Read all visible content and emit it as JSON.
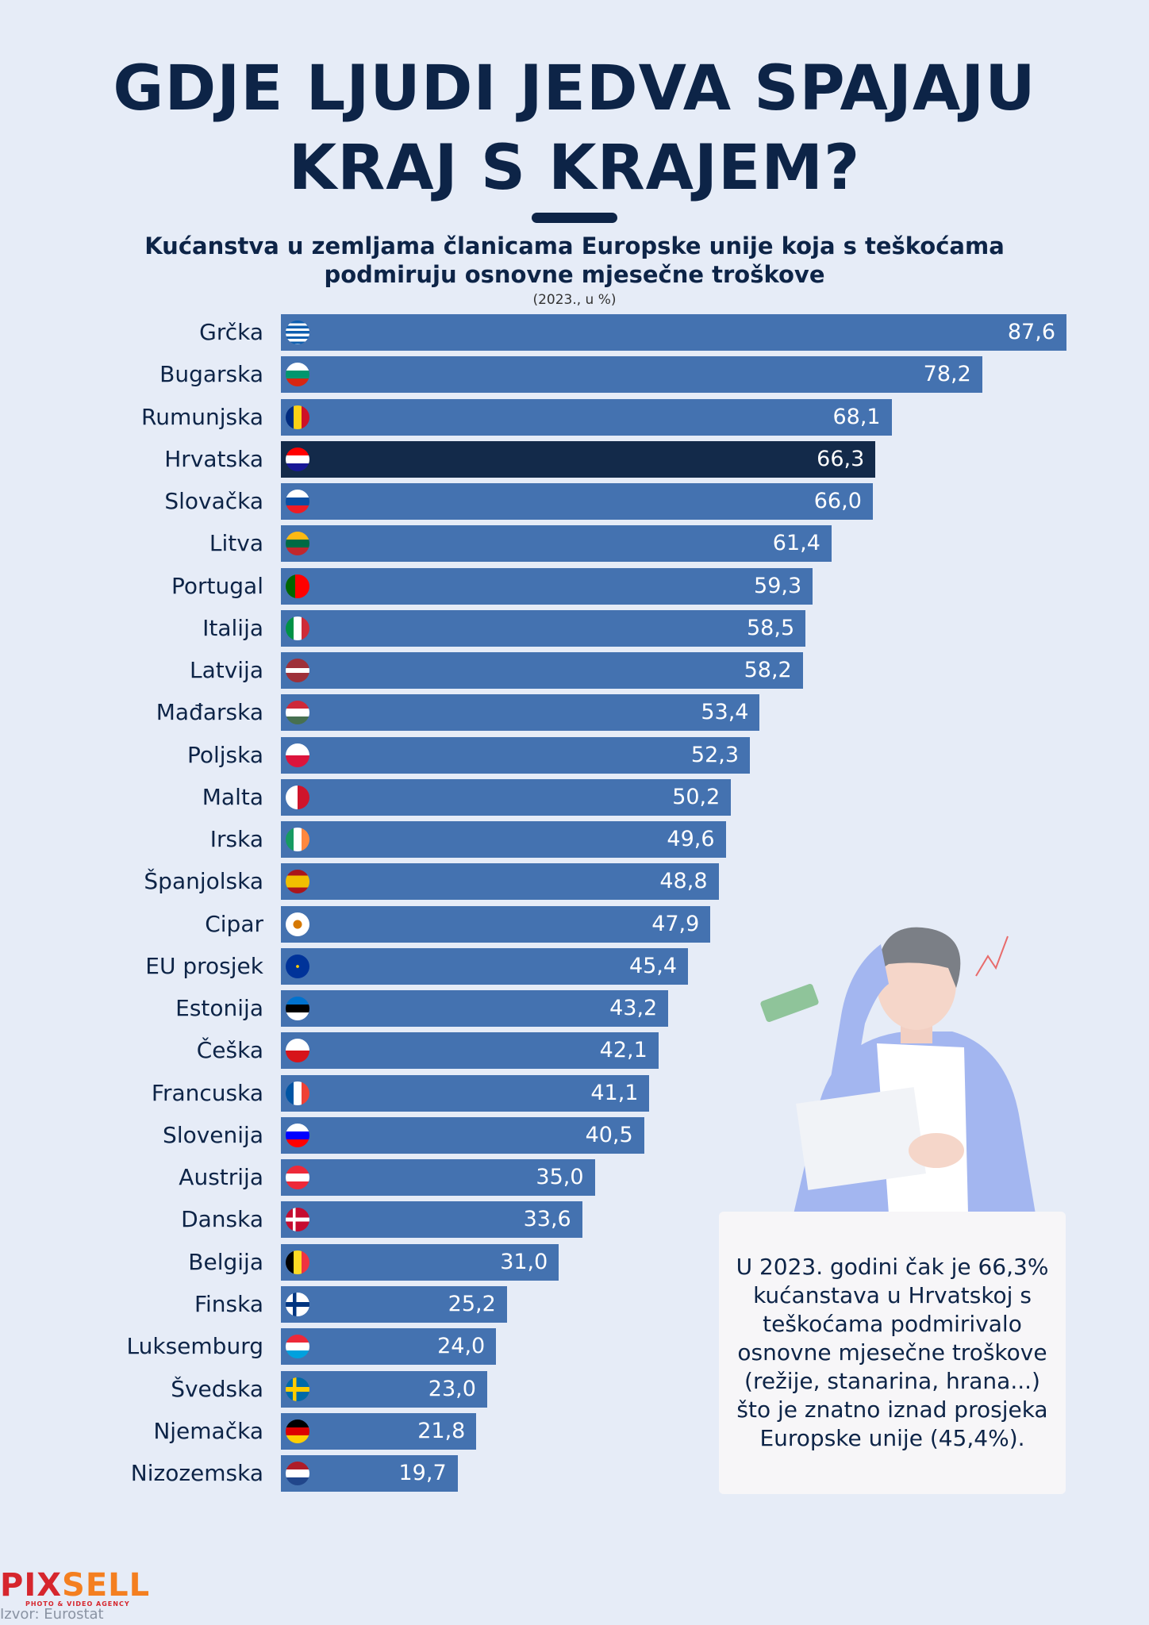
{
  "title_line1": "GDJE LJUDI JEDVA SPAJAJU",
  "title_line2": "KRAJ S KRAJEM?",
  "subtitle": "Kućanstva u zemljama članicama Europske unije koja s teškoćama podmiruju osnovne mjesečne troškove",
  "unit": "(2023., u %)",
  "colors": {
    "bar": "#4472b0",
    "highlight": "#132a4a",
    "title": "#0d2447",
    "background": "#e6ecf7"
  },
  "chart_data": {
    "type": "bar",
    "orientation": "horizontal",
    "title": "Kućanstva u zemljama članicama Europske unije koja s teškoćama podmiruju osnovne mjesečne troškove",
    "unit": "(2023., u %)",
    "highlight": "Hrvatska",
    "categories": [
      "Grčka",
      "Bugarska",
      "Rumunjska",
      "Hrvatska",
      "Slovačka",
      "Litva",
      "Portugal",
      "Italija",
      "Latvija",
      "Mađarska",
      "Poljska",
      "Malta",
      "Irska",
      "Španjolska",
      "Cipar",
      "EU prosjek",
      "Estonija",
      "Češka",
      "Francuska",
      "Slovenija",
      "Austrija",
      "Danska",
      "Belgija",
      "Finska",
      "Luksemburg",
      "Švedska",
      "Njemačka",
      "Nizozemska"
    ],
    "values": [
      87.6,
      78.2,
      68.1,
      66.3,
      66.0,
      61.4,
      59.3,
      58.5,
      58.2,
      53.4,
      52.3,
      50.2,
      49.6,
      48.8,
      47.9,
      45.4,
      43.2,
      42.1,
      41.1,
      40.5,
      35.0,
      33.6,
      31.0,
      25.2,
      24.0,
      23.0,
      21.8,
      19.7
    ],
    "value_labels": [
      "87,6",
      "78,2",
      "68,1",
      "66,3",
      "66,0",
      "61,4",
      "59,3",
      "58,5",
      "58,2",
      "53,4",
      "52,3",
      "50,2",
      "49,6",
      "48,8",
      "47,9",
      "45,4",
      "43,2",
      "42,1",
      "41,1",
      "40,5",
      "35,0",
      "33,6",
      "31,0",
      "25,2",
      "24,0",
      "23,0",
      "21,8",
      "19,7"
    ],
    "xlim": [
      0,
      87.6
    ],
    "grid": false
  },
  "flags": [
    "repeating-linear-gradient(180deg,#0d5eaf 0 3.3px,#fff 3.3px 6.6px)",
    "linear-gradient(180deg,#fff 33%,#00966e 33% 66%,#d62612 66%)",
    "linear-gradient(90deg,#002b7f 33%,#fcd116 33% 66%,#ce1126 66%)",
    "linear-gradient(180deg,#ff0000 33%,#fff 33% 66%,#171796 66%)",
    "linear-gradient(180deg,#fff 33%,#0b4ea2 33% 66%,#ee1c25 66%)",
    "linear-gradient(180deg,#fdb913 33%,#006a44 33% 66%,#c1272d 66%)",
    "linear-gradient(90deg,#006600 40%,#ff0000 40%)",
    "linear-gradient(90deg,#009246 33%,#fff 33% 66%,#ce2b37 66%)",
    "linear-gradient(180deg,#9e3039 40%,#fff 40% 60%,#9e3039 60%)",
    "linear-gradient(180deg,#ce2939 33%,#fff 33% 66%,#477050 66%)",
    "linear-gradient(180deg,#fff 50%,#dc143c 50%)",
    "linear-gradient(90deg,#fff 50%,#cf142b 50%)",
    "linear-gradient(90deg,#169b62 33%,#fff 33% 66%,#ff883e 66%)",
    "linear-gradient(180deg,#aa151b 25%,#f1bf00 25% 75%,#aa151b 75%)",
    "radial-gradient(circle,#d57800 25%,#fff 27%)",
    "radial-gradient(circle,#ffcc00 0 8%,#003399 10%)",
    "linear-gradient(180deg,#0072ce 33%,#000 33% 66%,#fff 66%)",
    "linear-gradient(180deg,#fff 50%,#d7141a 50%)",
    "linear-gradient(90deg,#0055a4 33%,#fff 33% 66%,#ef4135 66%)",
    "linear-gradient(180deg,#fff 33%,#0000ff 33% 66%,#ff0000 66%)",
    "linear-gradient(180deg,#ed2939 33%,#fff 33% 66%,#ed2939 66%)",
    "linear-gradient(90deg,transparent 30%,#fff 30% 42%,transparent 42%),linear-gradient(180deg,#c60c30 42%,#fff 42% 58%,#c60c30 58%)",
    "linear-gradient(90deg,#000 33%,#fdda24 33% 66%,#ef3340 66%)",
    "linear-gradient(90deg,transparent 30%,#003580 30% 45%,transparent 45%),linear-gradient(180deg,#fff 40%,#003580 40% 60%,#fff 60%)",
    "linear-gradient(180deg,#ed2939 33%,#fff 33% 66%,#00a1de 66%)",
    "linear-gradient(90deg,transparent 30%,#fecc00 30% 45%,transparent 45%),linear-gradient(180deg,#006aa7 40%,#fecc00 40% 60%,#006aa7 60%)",
    "linear-gradient(180deg,#000 33%,#dd0000 33% 66%,#ffce00 66%)",
    "linear-gradient(180deg,#ae1c28 33%,#fff 33% 66%,#21468b 66%)"
  ],
  "note": "U 2023. godini čak je 66,3% kućanstava u Hrvatskoj s teškoćama podmirivalo osnovne mjesečne troškove (režije, stanarina, hrana...) što je znatno iznad prosjeka Europske unije (45,4%).",
  "logo": {
    "name_part1": "PIX",
    "name_part2": "SELL",
    "tagline": "PHOTO & VIDEO AGENCY"
  },
  "source": "Izvor: Eurostat"
}
